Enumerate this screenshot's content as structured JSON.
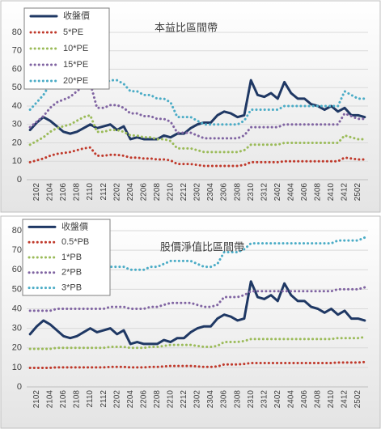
{
  "chart_data": [
    {
      "type": "line",
      "title": "本益比區間帶",
      "legend": "upper left",
      "grid": true,
      "categories": [
        null,
        "2102",
        null,
        "2104",
        null,
        "2106",
        null,
        "2108",
        null,
        "2110",
        null,
        "2112",
        null,
        "2202",
        null,
        "2204",
        null,
        "2206",
        null,
        "2208",
        null,
        "2210",
        null,
        "2212",
        null,
        "2302",
        null,
        "2304",
        null,
        "2306",
        null,
        "2308",
        null,
        "2310",
        null,
        "2312",
        null,
        "2402",
        null,
        "2404",
        null,
        "2406",
        null,
        "2408",
        null,
        "2410",
        null,
        "2412",
        null,
        "2502",
        null
      ],
      "ylim": [
        0,
        80
      ],
      "yticks": [
        0,
        10,
        20,
        30,
        40,
        50,
        60,
        70,
        80
      ],
      "series": [
        {
          "name": "收盤價",
          "color": "#1f3864",
          "style": "solid",
          "values": [
            27,
            31,
            34,
            32,
            29,
            26,
            25,
            26,
            28,
            30,
            28,
            29,
            30,
            27,
            29,
            22,
            23,
            22,
            22,
            22,
            24,
            23,
            25,
            25,
            28,
            30,
            31,
            31,
            35,
            37,
            36,
            34,
            35,
            54,
            46,
            45,
            47,
            44,
            53,
            47,
            44,
            44,
            41,
            40,
            38,
            40,
            37,
            39,
            35,
            35,
            34
          ]
        },
        {
          "name": "5*PE",
          "color": "#c0392b",
          "style": "dotted",
          "values": [
            9.5,
            10.5,
            11.5,
            13,
            14,
            14.5,
            15,
            16,
            17,
            17.5,
            13,
            13,
            13.5,
            13.5,
            13,
            12,
            12,
            11.5,
            11.5,
            11,
            11,
            10.5,
            8.5,
            8.5,
            8.5,
            8,
            7.5,
            7.5,
            7.5,
            7.5,
            7.5,
            7.5,
            8,
            9.5,
            9.5,
            9.5,
            9.5,
            9.5,
            10,
            10,
            10,
            10,
            10,
            10,
            10,
            10,
            10,
            12,
            11.5,
            11,
            11
          ]
        },
        {
          "name": "10*PE",
          "color": "#9bbb59",
          "style": "dotted",
          "values": [
            19,
            21,
            23,
            26,
            28,
            29,
            30,
            32,
            34,
            35,
            26,
            26,
            27,
            27,
            26,
            24,
            24,
            23,
            23,
            22,
            22,
            21,
            17,
            17,
            17,
            16,
            15,
            15,
            15,
            15,
            15,
            15,
            16,
            19,
            19,
            19,
            19,
            19,
            20,
            20,
            20,
            20,
            20,
            20,
            20,
            20,
            20,
            24,
            23,
            22,
            22
          ]
        },
        {
          "name": "15*PE",
          "color": "#8064a2",
          "style": "dotted",
          "values": [
            28.5,
            31.5,
            34.5,
            39,
            42,
            43.5,
            45,
            48,
            51,
            52.5,
            39,
            39,
            40.5,
            40.5,
            39,
            36,
            36,
            34.5,
            34.5,
            33,
            33,
            31.5,
            25.5,
            25.5,
            25.5,
            24,
            22.5,
            22.5,
            22.5,
            22.5,
            22.5,
            22.5,
            24,
            28.5,
            28.5,
            28.5,
            28.5,
            28.5,
            30,
            30,
            30,
            30,
            30,
            30,
            30,
            30,
            30,
            36,
            34.5,
            33,
            33
          ]
        },
        {
          "name": "20*PE",
          "color": "#4bacc6",
          "style": "dotted",
          "values": [
            38,
            42,
            46,
            52,
            56,
            58,
            60,
            64,
            68,
            70,
            52,
            52,
            54,
            54,
            52,
            48,
            48,
            46,
            46,
            44,
            44,
            42,
            34,
            34,
            34,
            32,
            30,
            30,
            30,
            30,
            30,
            30,
            32,
            38,
            38,
            38,
            38,
            38,
            40,
            40,
            40,
            40,
            40,
            40,
            40,
            40,
            40,
            48,
            46,
            44,
            44
          ]
        }
      ]
    },
    {
      "type": "line",
      "title": "股價淨值比區間帶",
      "legend": "upper left",
      "grid": true,
      "categories": [
        null,
        "2102",
        null,
        "2104",
        null,
        "2106",
        null,
        "2108",
        null,
        "2110",
        null,
        "2112",
        null,
        "2202",
        null,
        "2204",
        null,
        "2206",
        null,
        "2208",
        null,
        "2210",
        null,
        "2212",
        null,
        "2302",
        null,
        "2304",
        null,
        "2306",
        null,
        "2308",
        null,
        "2310",
        null,
        "2312",
        null,
        "2402",
        null,
        "2404",
        null,
        "2406",
        null,
        "2408",
        null,
        "2410",
        null,
        "2412",
        null,
        "2502",
        null
      ],
      "ylim": [
        0,
        80
      ],
      "yticks": [
        0,
        10,
        20,
        30,
        40,
        50,
        60,
        70,
        80
      ],
      "series": [
        {
          "name": "收盤價",
          "color": "#1f3864",
          "style": "solid",
          "values": [
            27,
            31,
            34,
            32,
            29,
            26,
            25,
            26,
            28,
            30,
            28,
            29,
            30,
            27,
            29,
            22,
            23,
            22,
            22,
            22,
            24,
            23,
            25,
            25,
            28,
            30,
            31,
            31,
            35,
            37,
            36,
            34,
            35,
            54,
            46,
            45,
            47,
            44,
            53,
            47,
            44,
            44,
            41,
            40,
            38,
            40,
            37,
            39,
            35,
            35,
            34
          ]
        },
        {
          "name": "0.5*PB",
          "color": "#c0392b",
          "style": "dotted",
          "values": [
            9.75,
            9.75,
            9.75,
            9.75,
            10,
            10,
            10,
            10,
            10,
            10,
            10,
            10,
            10.25,
            10.25,
            10.25,
            10,
            10,
            10,
            10.25,
            10.25,
            10.5,
            10.75,
            10.75,
            10.75,
            10.75,
            10.5,
            10.25,
            10.25,
            10.5,
            11.5,
            11.5,
            11.5,
            11.75,
            12.25,
            12.25,
            12.25,
            12.25,
            12.25,
            12.25,
            12.25,
            12.25,
            12.25,
            12.25,
            12.25,
            12.25,
            12.25,
            12.5,
            12.5,
            12.5,
            12.5,
            12.75
          ]
        },
        {
          "name": "1*PB",
          "color": "#9bbb59",
          "style": "dotted",
          "values": [
            19.5,
            19.5,
            19.5,
            19.5,
            20,
            20,
            20,
            20,
            20,
            20,
            20,
            20,
            20.5,
            20.5,
            20.5,
            20,
            20,
            20,
            20.5,
            20.5,
            21,
            21.5,
            21.5,
            21.5,
            21.5,
            21,
            20.5,
            20.5,
            21,
            23,
            23,
            23,
            23.5,
            24.5,
            24.5,
            24.5,
            24.5,
            24.5,
            24.5,
            24.5,
            24.5,
            24.5,
            24.5,
            24.5,
            24.5,
            24.5,
            25,
            25,
            25,
            25,
            25.5
          ]
        },
        {
          "name": "2*PB",
          "color": "#8064a2",
          "style": "dotted",
          "values": [
            39,
            39,
            39,
            39,
            40,
            40,
            40,
            40,
            40,
            40,
            40,
            40,
            41,
            41,
            41,
            40,
            40,
            40,
            41,
            41,
            42,
            43,
            43,
            43,
            43,
            42,
            41,
            41,
            42,
            46,
            46,
            46,
            47,
            49,
            49,
            49,
            49,
            49,
            49,
            49,
            49,
            49,
            49,
            49,
            49,
            49,
            50,
            50,
            50,
            50,
            51
          ]
        },
        {
          "name": "3*PB",
          "color": "#4bacc6",
          "style": "dotted",
          "values": [
            58.5,
            58.5,
            58.5,
            58.5,
            60,
            60,
            60,
            60,
            60,
            60,
            60,
            60,
            61.5,
            61.5,
            61.5,
            60,
            60,
            60,
            61.5,
            61.5,
            63,
            64.5,
            64.5,
            64.5,
            64.5,
            63,
            61.5,
            61.5,
            63,
            69,
            69,
            69,
            70.5,
            73.5,
            73.5,
            73.5,
            73.5,
            73.5,
            73.5,
            73.5,
            73.5,
            73.5,
            73.5,
            73.5,
            73.5,
            73.5,
            75,
            75,
            75,
            75,
            76.5
          ]
        }
      ]
    }
  ]
}
